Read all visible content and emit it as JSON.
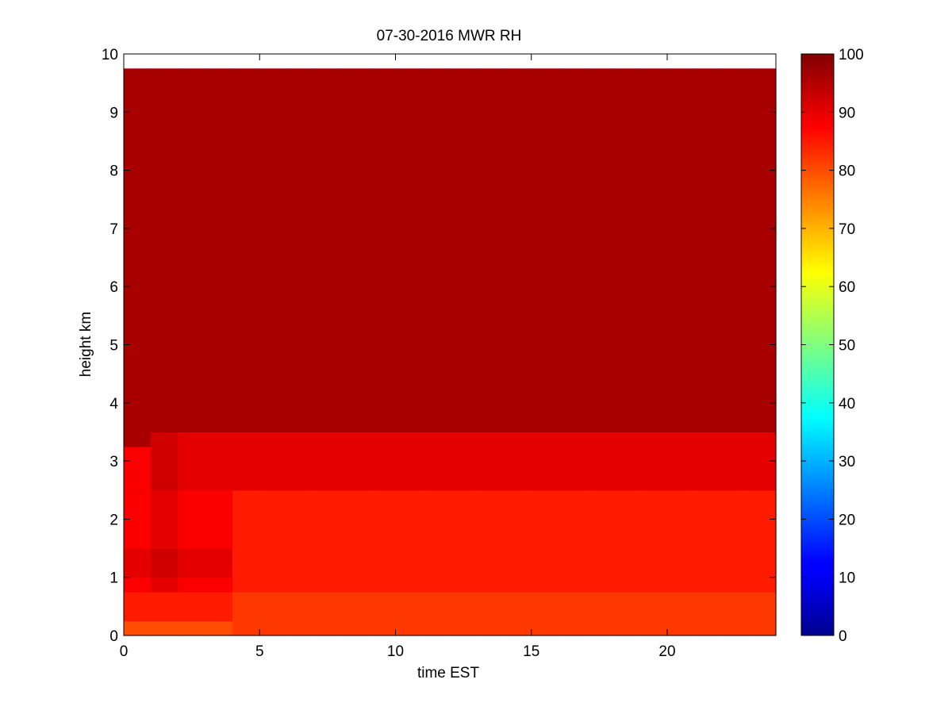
{
  "chart_data": {
    "type": "heatmap",
    "title": "07-30-2016 MWR RH",
    "xlabel": "time EST",
    "ylabel": "height km",
    "xlim": [
      0,
      24
    ],
    "ylim": [
      0,
      10
    ],
    "x_ticks": [
      0,
      5,
      10,
      15,
      20
    ],
    "y_ticks": [
      0,
      1,
      2,
      3,
      4,
      5,
      6,
      7,
      8,
      9,
      10
    ],
    "colorbar": {
      "colormap": "jet",
      "clim": [
        0,
        100
      ],
      "ticks": [
        0,
        10,
        20,
        30,
        40,
        50,
        60,
        70,
        80,
        90,
        100
      ]
    },
    "time_hours": [
      0,
      1,
      2,
      3,
      4,
      5,
      6,
      7,
      8,
      9,
      10,
      11,
      12,
      13,
      14,
      15,
      16,
      17,
      18,
      19,
      20,
      21,
      22,
      23
    ],
    "heights_km": [
      0.0,
      0.25,
      0.5,
      0.75,
      1.0,
      1.25,
      1.5,
      1.75,
      2.0,
      2.25,
      2.5,
      2.75,
      3.0,
      3.25,
      3.5,
      3.75,
      4.0,
      4.25,
      4.5,
      4.75,
      5.0,
      5.25,
      5.5,
      5.75,
      6.0,
      6.25,
      6.5,
      6.75,
      7.0,
      7.25,
      7.5,
      7.75,
      8.0,
      8.25,
      8.5,
      8.75,
      9.0,
      9.25,
      9.5
    ],
    "rh_percent": [
      [
        80,
        85,
        85,
        88,
        90,
        90,
        88,
        88,
        88,
        88,
        88,
        88,
        88,
        96,
        96,
        96,
        96,
        96,
        96,
        96,
        96,
        96,
        96,
        96,
        96,
        96,
        96,
        96,
        96,
        96,
        96,
        96,
        96,
        96,
        96,
        96,
        96,
        96,
        96
      ],
      [
        80,
        85,
        85,
        90,
        92,
        92,
        90,
        90,
        90,
        90,
        92,
        92,
        92,
        92,
        96,
        96,
        96,
        96,
        96,
        96,
        96,
        96,
        96,
        96,
        96,
        96,
        96,
        96,
        96,
        96,
        96,
        96,
        96,
        96,
        96,
        96,
        96,
        96,
        96
      ],
      [
        80,
        85,
        85,
        88,
        90,
        90,
        88,
        88,
        88,
        88,
        90,
        90,
        90,
        90,
        96,
        96,
        96,
        96,
        96,
        96,
        96,
        96,
        96,
        96,
        96,
        96,
        96,
        96,
        96,
        96,
        96,
        96,
        96,
        96,
        96,
        96,
        96,
        96,
        96
      ],
      [
        80,
        85,
        85,
        88,
        90,
        90,
        88,
        88,
        88,
        88,
        90,
        90,
        90,
        90,
        96,
        96,
        96,
        96,
        96,
        96,
        96,
        96,
        96,
        96,
        96,
        96,
        96,
        96,
        96,
        96,
        96,
        96,
        96,
        96,
        96,
        96,
        96,
        96,
        96
      ],
      [
        82,
        82,
        82,
        85,
        85,
        85,
        85,
        85,
        85,
        85,
        90,
        90,
        90,
        90,
        96,
        96,
        96,
        96,
        96,
        96,
        96,
        96,
        96,
        96,
        96,
        96,
        96,
        96,
        96,
        96,
        96,
        96,
        96,
        96,
        96,
        96,
        96,
        96,
        96
      ],
      [
        82,
        82,
        82,
        85,
        85,
        85,
        85,
        85,
        85,
        85,
        90,
        90,
        90,
        90,
        96,
        96,
        96,
        96,
        96,
        96,
        96,
        96,
        96,
        96,
        96,
        96,
        96,
        96,
        96,
        96,
        96,
        96,
        96,
        96,
        96,
        96,
        96,
        96,
        96
      ],
      [
        82,
        82,
        82,
        85,
        85,
        85,
        85,
        85,
        85,
        85,
        90,
        90,
        90,
        90,
        96,
        96,
        96,
        96,
        96,
        96,
        96,
        96,
        96,
        96,
        96,
        96,
        96,
        96,
        96,
        96,
        96,
        96,
        96,
        96,
        96,
        96,
        96,
        96,
        96
      ],
      [
        82,
        82,
        82,
        85,
        85,
        85,
        85,
        85,
        85,
        85,
        90,
        90,
        90,
        90,
        96,
        96,
        96,
        96,
        96,
        96,
        96,
        96,
        96,
        96,
        96,
        96,
        96,
        96,
        96,
        96,
        96,
        96,
        96,
        96,
        96,
        96,
        96,
        96,
        96
      ],
      [
        82,
        82,
        82,
        85,
        85,
        85,
        85,
        85,
        85,
        85,
        90,
        90,
        90,
        90,
        96,
        96,
        96,
        96,
        96,
        96,
        96,
        96,
        96,
        96,
        96,
        96,
        96,
        96,
        96,
        96,
        96,
        96,
        96,
        96,
        96,
        96,
        96,
        96,
        96
      ],
      [
        82,
        82,
        82,
        85,
        85,
        85,
        85,
        85,
        85,
        85,
        90,
        90,
        90,
        90,
        96,
        96,
        96,
        96,
        96,
        96,
        96,
        96,
        96,
        96,
        96,
        96,
        96,
        96,
        96,
        96,
        96,
        96,
        96,
        96,
        96,
        96,
        96,
        96,
        96
      ],
      [
        82,
        82,
        82,
        85,
        85,
        85,
        85,
        85,
        85,
        85,
        90,
        90,
        90,
        90,
        96,
        96,
        96,
        96,
        96,
        96,
        96,
        96,
        96,
        96,
        96,
        96,
        96,
        96,
        96,
        96,
        96,
        96,
        96,
        96,
        96,
        96,
        96,
        96,
        96
      ],
      [
        82,
        82,
        82,
        85,
        85,
        85,
        85,
        85,
        85,
        85,
        90,
        90,
        90,
        90,
        96,
        96,
        96,
        96,
        96,
        96,
        96,
        96,
        96,
        96,
        96,
        96,
        96,
        96,
        96,
        96,
        96,
        96,
        96,
        96,
        96,
        96,
        96,
        96,
        96
      ],
      [
        82,
        82,
        82,
        85,
        85,
        85,
        85,
        85,
        85,
        85,
        90,
        90,
        90,
        90,
        96,
        96,
        96,
        96,
        96,
        96,
        96,
        96,
        96,
        96,
        96,
        96,
        96,
        96,
        96,
        96,
        96,
        96,
        96,
        96,
        96,
        96,
        96,
        96,
        96
      ],
      [
        82,
        82,
        82,
        85,
        85,
        85,
        85,
        85,
        85,
        85,
        90,
        90,
        90,
        90,
        96,
        96,
        96,
        96,
        96,
        96,
        96,
        96,
        96,
        96,
        96,
        96,
        96,
        96,
        96,
        96,
        96,
        96,
        96,
        96,
        96,
        96,
        96,
        96,
        96
      ],
      [
        82,
        82,
        82,
        85,
        85,
        85,
        85,
        85,
        85,
        85,
        90,
        90,
        90,
        90,
        96,
        96,
        96,
        96,
        96,
        96,
        96,
        96,
        96,
        96,
        96,
        96,
        96,
        96,
        96,
        96,
        96,
        96,
        96,
        96,
        96,
        96,
        96,
        96,
        96
      ],
      [
        82,
        82,
        82,
        85,
        85,
        85,
        85,
        85,
        85,
        85,
        90,
        90,
        90,
        90,
        96,
        96,
        96,
        96,
        96,
        96,
        96,
        96,
        96,
        96,
        96,
        96,
        96,
        96,
        96,
        96,
        96,
        96,
        96,
        96,
        96,
        96,
        96,
        96,
        96
      ],
      [
        82,
        82,
        82,
        85,
        85,
        85,
        85,
        85,
        85,
        85,
        90,
        90,
        90,
        90,
        96,
        96,
        96,
        96,
        96,
        96,
        96,
        96,
        96,
        96,
        96,
        96,
        96,
        96,
        96,
        96,
        96,
        96,
        96,
        96,
        96,
        96,
        96,
        96,
        96
      ],
      [
        82,
        82,
        82,
        85,
        85,
        85,
        85,
        85,
        85,
        85,
        90,
        90,
        90,
        90,
        96,
        96,
        96,
        96,
        96,
        96,
        96,
        96,
        96,
        96,
        96,
        96,
        96,
        96,
        96,
        96,
        96,
        96,
        96,
        96,
        96,
        96,
        96,
        96,
        96
      ],
      [
        82,
        82,
        82,
        85,
        85,
        85,
        85,
        85,
        85,
        85,
        90,
        90,
        90,
        90,
        96,
        96,
        96,
        96,
        96,
        96,
        96,
        96,
        96,
        96,
        96,
        96,
        96,
        96,
        96,
        96,
        96,
        96,
        96,
        96,
        96,
        96,
        96,
        96,
        96
      ],
      [
        82,
        82,
        82,
        85,
        85,
        85,
        85,
        85,
        85,
        85,
        90,
        90,
        90,
        90,
        96,
        96,
        96,
        96,
        96,
        96,
        96,
        96,
        96,
        96,
        96,
        96,
        96,
        96,
        96,
        96,
        96,
        96,
        96,
        96,
        96,
        96,
        96,
        96,
        96
      ],
      [
        82,
        82,
        82,
        85,
        85,
        85,
        85,
        85,
        85,
        85,
        90,
        90,
        90,
        90,
        96,
        96,
        96,
        96,
        96,
        96,
        96,
        96,
        96,
        96,
        96,
        96,
        96,
        96,
        96,
        96,
        96,
        96,
        96,
        96,
        96,
        96,
        96,
        96,
        96
      ],
      [
        82,
        82,
        82,
        85,
        85,
        85,
        85,
        85,
        85,
        85,
        90,
        90,
        90,
        90,
        96,
        96,
        96,
        96,
        96,
        96,
        96,
        96,
        96,
        96,
        96,
        96,
        96,
        96,
        96,
        96,
        96,
        96,
        96,
        96,
        96,
        96,
        96,
        96,
        96
      ],
      [
        82,
        82,
        82,
        85,
        85,
        85,
        85,
        85,
        85,
        85,
        90,
        90,
        90,
        90,
        96,
        96,
        96,
        96,
        96,
        96,
        96,
        96,
        96,
        96,
        96,
        96,
        96,
        96,
        96,
        96,
        96,
        96,
        96,
        96,
        96,
        96,
        96,
        96,
        96
      ],
      [
        82,
        82,
        82,
        85,
        85,
        85,
        85,
        85,
        85,
        85,
        90,
        90,
        90,
        90,
        96,
        96,
        96,
        96,
        96,
        96,
        96,
        96,
        96,
        96,
        96,
        96,
        96,
        96,
        96,
        96,
        96,
        96,
        96,
        96,
        96,
        96,
        96,
        96,
        96
      ]
    ]
  }
}
